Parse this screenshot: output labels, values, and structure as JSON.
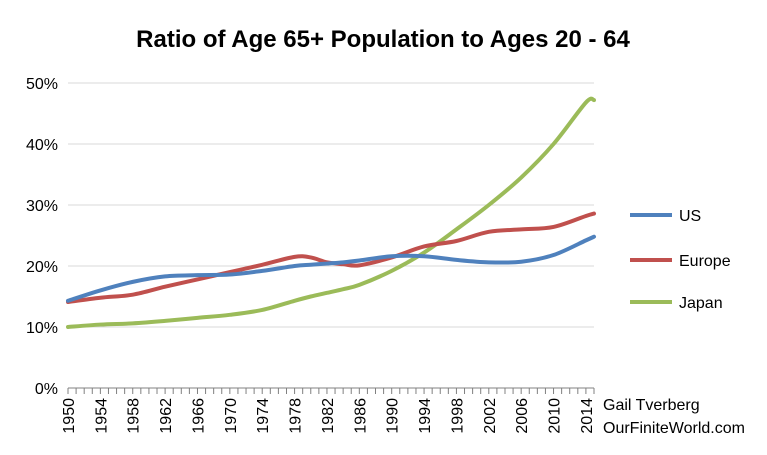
{
  "chart_data": {
    "type": "line",
    "title": "Ratio of Age 65+ Population to Ages 20 - 64",
    "xlabel": "",
    "ylabel": "",
    "ylim": [
      0,
      50
    ],
    "yticks": [
      "0%",
      "10%",
      "20%",
      "30%",
      "40%",
      "50%"
    ],
    "xlim": [
      1950,
      2015
    ],
    "xticks": [
      "1950",
      "1954",
      "1958",
      "1962",
      "1966",
      "1970",
      "1974",
      "1978",
      "1982",
      "1986",
      "1990",
      "1994",
      "1998",
      "2002",
      "2006",
      "2010",
      "2014"
    ],
    "grid": "horizontal",
    "legend": "right",
    "x": [
      1950,
      1954,
      1958,
      1962,
      1966,
      1970,
      1974,
      1978,
      1980,
      1982,
      1984,
      1986,
      1990,
      1994,
      1998,
      2002,
      2006,
      2010,
      2014,
      2015
    ],
    "series": [
      {
        "name": "US",
        "color": "#4f81bd",
        "values": [
          14.3,
          16.0,
          17.4,
          18.3,
          18.5,
          18.6,
          19.2,
          20.0,
          20.2,
          20.4,
          20.6,
          20.9,
          21.6,
          21.6,
          21.0,
          20.6,
          20.7,
          21.8,
          24.2,
          24.8
        ]
      },
      {
        "name": "Europe",
        "color": "#c0504d",
        "values": [
          14.1,
          14.8,
          15.3,
          16.6,
          17.8,
          19.0,
          20.2,
          21.5,
          21.4,
          20.6,
          20.3,
          20.1,
          21.4,
          23.2,
          24.1,
          25.6,
          26.0,
          26.4,
          28.2,
          28.6
        ]
      },
      {
        "name": "Japan",
        "color": "#9bbb59",
        "values": [
          10.0,
          10.4,
          10.6,
          11.0,
          11.5,
          12.0,
          12.8,
          14.3,
          15.0,
          15.6,
          16.2,
          16.9,
          19.2,
          22.2,
          26.0,
          30.0,
          34.5,
          40.0,
          46.8,
          47.2
        ]
      }
    ]
  },
  "credit": {
    "line1": "Gail Tverberg",
    "line2": "OurFiniteWorld.com"
  }
}
